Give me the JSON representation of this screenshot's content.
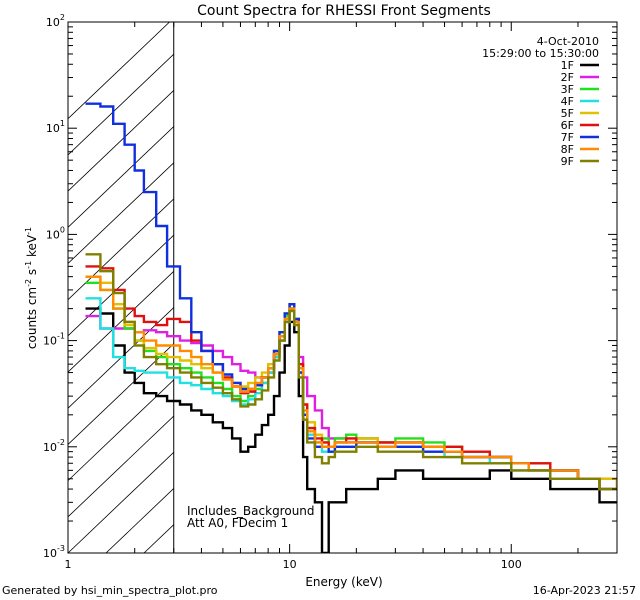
{
  "chart_data": {
    "type": "line",
    "title": "Count Spectra for RHESSI Front Segments",
    "xlabel": "Energy (keV)",
    "ylabel_parts": [
      "counts cm",
      "-2",
      " s",
      "-1",
      " keV",
      "-1"
    ],
    "x_scale": "log",
    "y_scale": "log",
    "xlim": [
      1,
      300
    ],
    "ylim": [
      0.001,
      100
    ],
    "x_major_ticks": [
      {
        "v": 1,
        "label": "1"
      },
      {
        "v": 10,
        "label": "10"
      },
      {
        "v": 100,
        "label": "100"
      }
    ],
    "y_major_ticks": [
      {
        "v": 0.001,
        "base": "10",
        "exp": "-3"
      },
      {
        "v": 0.01,
        "base": "10",
        "exp": "-2"
      },
      {
        "v": 0.1,
        "base": "10",
        "exp": "-1"
      },
      {
        "v": 1,
        "base": "10",
        "exp": "0"
      },
      {
        "v": 10,
        "base": "10",
        "exp": "1"
      },
      {
        "v": 100,
        "base": "10",
        "exp": "2"
      }
    ],
    "date": "4-Oct-2010",
    "time_range": "15:29:00 to 15:30:00",
    "hatched_region_max_keV": 3,
    "annotations": [
      "Includes_Background",
      "Att A0, FDecim 1"
    ],
    "series": [
      {
        "name": "1F",
        "color": "#000000",
        "energies": [
          1.2,
          1.4,
          1.6,
          1.8,
          2.0,
          2.2,
          2.5,
          2.8,
          3.2,
          3.6,
          4.0,
          4.5,
          5.0,
          5.5,
          6.0,
          6.5,
          7.0,
          7.5,
          8.0,
          8.5,
          9.0,
          9.5,
          10.0,
          10.5,
          11.0,
          11.5,
          12.0,
          13.0,
          14.0,
          15.0,
          16.0,
          18.0,
          20.0,
          25.0,
          30.0,
          40.0,
          50.0,
          60.0,
          80.0,
          100.0,
          120.0,
          150.0,
          200.0,
          250.0,
          300.0
        ],
        "counts": [
          0.2,
          0.18,
          0.09,
          0.05,
          0.04,
          0.032,
          0.03,
          0.027,
          0.025,
          0.022,
          0.02,
          0.017,
          0.015,
          0.012,
          0.009,
          0.01,
          0.013,
          0.016,
          0.02,
          0.03,
          0.05,
          0.09,
          0.15,
          0.12,
          0.03,
          0.008,
          0.004,
          0.003,
          0.001,
          0.003,
          0.003,
          0.004,
          0.004,
          0.005,
          0.006,
          0.005,
          0.005,
          0.005,
          0.006,
          0.005,
          0.005,
          0.004,
          0.004,
          0.003,
          0.003
        ]
      },
      {
        "name": "2F",
        "color": "#e020e0",
        "energies": [
          1.2,
          1.4,
          1.6,
          1.8,
          2.0,
          2.2,
          2.5,
          2.8,
          3.2,
          3.6,
          4.0,
          4.5,
          5.0,
          5.5,
          6.0,
          6.5,
          7.0,
          7.5,
          8.0,
          8.5,
          9.0,
          9.5,
          10.0,
          10.5,
          11.0,
          11.5,
          12.0,
          13.0,
          14.0,
          15.0,
          16.0,
          18.0,
          20.0,
          25.0,
          30.0,
          40.0,
          50.0,
          60.0,
          80.0,
          100.0,
          120.0,
          150.0,
          200.0,
          250.0,
          300.0
        ],
        "counts": [
          0.17,
          0.13,
          0.13,
          0.13,
          0.12,
          0.125,
          0.12,
          0.11,
          0.1,
          0.095,
          0.09,
          0.08,
          0.07,
          0.06,
          0.052,
          0.05,
          0.045,
          0.045,
          0.05,
          0.07,
          0.1,
          0.15,
          0.2,
          0.15,
          0.07,
          0.045,
          0.03,
          0.022,
          0.015,
          0.012,
          0.012,
          0.011,
          0.012,
          0.011,
          0.011,
          0.01,
          0.009,
          0.008,
          0.008,
          0.007,
          0.007,
          0.006,
          0.005,
          0.005,
          0.004
        ]
      },
      {
        "name": "3F",
        "color": "#20e020",
        "energies": [
          1.2,
          1.4,
          1.6,
          1.8,
          2.0,
          2.2,
          2.5,
          2.8,
          3.2,
          3.6,
          4.0,
          4.5,
          5.0,
          5.5,
          6.0,
          6.5,
          7.0,
          7.5,
          8.0,
          8.5,
          9.0,
          9.5,
          10.0,
          10.5,
          11.0,
          11.5,
          12.0,
          13.0,
          14.0,
          15.0,
          16.0,
          18.0,
          20.0,
          25.0,
          30.0,
          40.0,
          50.0,
          60.0,
          80.0,
          100.0,
          120.0,
          150.0,
          200.0,
          250.0,
          300.0
        ],
        "counts": [
          0.35,
          0.3,
          0.2,
          0.13,
          0.1,
          0.08,
          0.07,
          0.06,
          0.055,
          0.05,
          0.045,
          0.04,
          0.035,
          0.03,
          0.027,
          0.03,
          0.035,
          0.04,
          0.05,
          0.07,
          0.11,
          0.17,
          0.22,
          0.16,
          0.05,
          0.02,
          0.015,
          0.011,
          0.012,
          0.01,
          0.012,
          0.013,
          0.012,
          0.011,
          0.012,
          0.011,
          0.01,
          0.009,
          0.008,
          0.007,
          0.007,
          0.006,
          0.005,
          0.004,
          0.004
        ]
      },
      {
        "name": "4F",
        "color": "#20e0e0",
        "energies": [
          1.2,
          1.4,
          1.6,
          1.8,
          2.0,
          2.2,
          2.5,
          2.8,
          3.2,
          3.6,
          4.0,
          4.5,
          5.0,
          5.5,
          6.0,
          6.5,
          7.0,
          7.5,
          8.0,
          8.5,
          9.0,
          9.5,
          10.0,
          10.5,
          11.0,
          11.5,
          12.0,
          13.0,
          14.0,
          15.0,
          16.0,
          18.0,
          20.0,
          25.0,
          30.0,
          40.0,
          50.0,
          60.0,
          80.0,
          100.0,
          120.0,
          150.0,
          200.0,
          250.0,
          300.0
        ],
        "counts": [
          0.25,
          0.13,
          0.07,
          0.055,
          0.052,
          0.05,
          0.05,
          0.045,
          0.04,
          0.038,
          0.035,
          0.032,
          0.03,
          0.027,
          0.025,
          0.028,
          0.032,
          0.04,
          0.05,
          0.07,
          0.1,
          0.15,
          0.2,
          0.15,
          0.05,
          0.02,
          0.013,
          0.01,
          0.009,
          0.009,
          0.01,
          0.01,
          0.011,
          0.01,
          0.01,
          0.009,
          0.008,
          0.008,
          0.007,
          0.006,
          0.006,
          0.005,
          0.005,
          0.004,
          0.004
        ]
      },
      {
        "name": "5F",
        "color": "#e0c000",
        "energies": [
          1.2,
          1.4,
          1.6,
          1.8,
          2.0,
          2.2,
          2.5,
          2.8,
          3.2,
          3.6,
          4.0,
          4.5,
          5.0,
          5.5,
          6.0,
          6.5,
          7.0,
          7.5,
          8.0,
          8.5,
          9.0,
          9.5,
          10.0,
          10.5,
          11.0,
          11.5,
          12.0,
          13.0,
          14.0,
          15.0,
          16.0,
          18.0,
          20.0,
          25.0,
          30.0,
          40.0,
          50.0,
          60.0,
          80.0,
          100.0,
          120.0,
          150.0,
          200.0,
          250.0,
          300.0
        ],
        "counts": [
          0.4,
          0.35,
          0.22,
          0.14,
          0.1,
          0.085,
          0.075,
          0.07,
          0.065,
          0.06,
          0.055,
          0.05,
          0.045,
          0.04,
          0.037,
          0.04,
          0.045,
          0.05,
          0.06,
          0.08,
          0.12,
          0.18,
          0.22,
          0.16,
          0.06,
          0.025,
          0.017,
          0.013,
          0.011,
          0.01,
          0.011,
          0.012,
          0.012,
          0.011,
          0.011,
          0.01,
          0.009,
          0.009,
          0.008,
          0.007,
          0.007,
          0.006,
          0.005,
          0.005,
          0.004
        ]
      },
      {
        "name": "6F",
        "color": "#e01010",
        "energies": [
          1.2,
          1.4,
          1.6,
          1.8,
          2.0,
          2.2,
          2.5,
          2.8,
          3.2,
          3.6,
          4.0,
          4.5,
          5.0,
          5.5,
          6.0,
          6.5,
          7.0,
          7.5,
          8.0,
          8.5,
          9.0,
          9.5,
          10.0,
          10.5,
          11.0,
          11.5,
          12.0,
          13.0,
          14.0,
          15.0,
          16.0,
          18.0,
          20.0,
          25.0,
          30.0,
          40.0,
          50.0,
          60.0,
          80.0,
          100.0,
          120.0,
          150.0,
          200.0,
          250.0,
          300.0
        ],
        "counts": [
          0.5,
          0.48,
          0.3,
          0.2,
          0.17,
          0.15,
          0.14,
          0.16,
          0.15,
          0.1,
          0.08,
          0.06,
          0.045,
          0.037,
          0.032,
          0.033,
          0.038,
          0.045,
          0.055,
          0.075,
          0.11,
          0.16,
          0.2,
          0.15,
          0.06,
          0.025,
          0.015,
          0.012,
          0.011,
          0.01,
          0.011,
          0.012,
          0.011,
          0.011,
          0.011,
          0.01,
          0.01,
          0.009,
          0.008,
          0.007,
          0.007,
          0.006,
          0.005,
          0.004,
          0.004
        ]
      },
      {
        "name": "7F",
        "color": "#1030e0",
        "energies": [
          1.2,
          1.4,
          1.6,
          1.8,
          2.0,
          2.2,
          2.5,
          2.8,
          3.2,
          3.6,
          4.0,
          4.5,
          5.0,
          5.5,
          6.0,
          6.5,
          7.0,
          7.5,
          8.0,
          8.5,
          9.0,
          9.5,
          10.0,
          10.5,
          11.0,
          11.5,
          12.0,
          13.0,
          14.0,
          15.0,
          16.0,
          18.0,
          20.0,
          25.0,
          30.0,
          40.0,
          50.0,
          60.0,
          80.0,
          100.0,
          120.0,
          150.0,
          200.0,
          250.0,
          300.0
        ],
        "counts": [
          17,
          16,
          11,
          7,
          4,
          2.5,
          1.2,
          0.5,
          0.25,
          0.12,
          0.08,
          0.06,
          0.048,
          0.04,
          0.035,
          0.035,
          0.038,
          0.045,
          0.055,
          0.08,
          0.12,
          0.18,
          0.22,
          0.16,
          0.05,
          0.02,
          0.012,
          0.01,
          0.01,
          0.009,
          0.01,
          0.01,
          0.011,
          0.01,
          0.01,
          0.009,
          0.009,
          0.008,
          0.008,
          0.007,
          0.006,
          0.006,
          0.005,
          0.004,
          0.004
        ]
      },
      {
        "name": "8F",
        "color": "#ff8c00",
        "energies": [
          1.2,
          1.4,
          1.6,
          1.8,
          2.0,
          2.2,
          2.5,
          2.8,
          3.2,
          3.6,
          4.0,
          4.5,
          5.0,
          5.5,
          6.0,
          6.5,
          7.0,
          7.5,
          8.0,
          8.5,
          9.0,
          9.5,
          10.0,
          10.5,
          11.0,
          11.5,
          12.0,
          13.0,
          14.0,
          15.0,
          16.0,
          18.0,
          20.0,
          25.0,
          30.0,
          40.0,
          50.0,
          60.0,
          80.0,
          100.0,
          120.0,
          150.0,
          200.0,
          250.0,
          300.0
        ],
        "counts": [
          0.4,
          0.3,
          0.2,
          0.15,
          0.12,
          0.1,
          0.09,
          0.09,
          0.08,
          0.07,
          0.06,
          0.05,
          0.043,
          0.037,
          0.033,
          0.035,
          0.04,
          0.045,
          0.055,
          0.075,
          0.11,
          0.16,
          0.2,
          0.15,
          0.055,
          0.022,
          0.014,
          0.011,
          0.01,
          0.01,
          0.011,
          0.011,
          0.011,
          0.01,
          0.011,
          0.01,
          0.009,
          0.008,
          0.008,
          0.007,
          0.006,
          0.006,
          0.005,
          0.004,
          0.004
        ]
      },
      {
        "name": "9F",
        "color": "#808000",
        "energies": [
          1.2,
          1.4,
          1.6,
          1.8,
          2.0,
          2.2,
          2.5,
          2.8,
          3.2,
          3.6,
          4.0,
          4.5,
          5.0,
          5.5,
          6.0,
          6.5,
          7.0,
          7.5,
          8.0,
          8.5,
          9.0,
          9.5,
          10.0,
          10.5,
          11.0,
          11.5,
          12.0,
          13.0,
          14.0,
          15.0,
          16.0,
          18.0,
          20.0,
          25.0,
          30.0,
          40.0,
          50.0,
          60.0,
          80.0,
          100.0,
          120.0,
          150.0,
          200.0,
          250.0,
          300.0
        ],
        "counts": [
          0.65,
          0.45,
          0.28,
          0.15,
          0.09,
          0.07,
          0.06,
          0.055,
          0.05,
          0.045,
          0.04,
          0.036,
          0.032,
          0.028,
          0.024,
          0.025,
          0.028,
          0.034,
          0.045,
          0.065,
          0.1,
          0.15,
          0.19,
          0.14,
          0.045,
          0.018,
          0.011,
          0.008,
          0.007,
          0.008,
          0.009,
          0.009,
          0.01,
          0.009,
          0.009,
          0.008,
          0.008,
          0.007,
          0.007,
          0.006,
          0.006,
          0.005,
          0.005,
          0.004,
          0.004
        ]
      }
    ]
  },
  "footer": {
    "generated_by": "Generated by hsi_min_spectra_plot.pro",
    "timestamp": "16-Apr-2023 21:57"
  }
}
